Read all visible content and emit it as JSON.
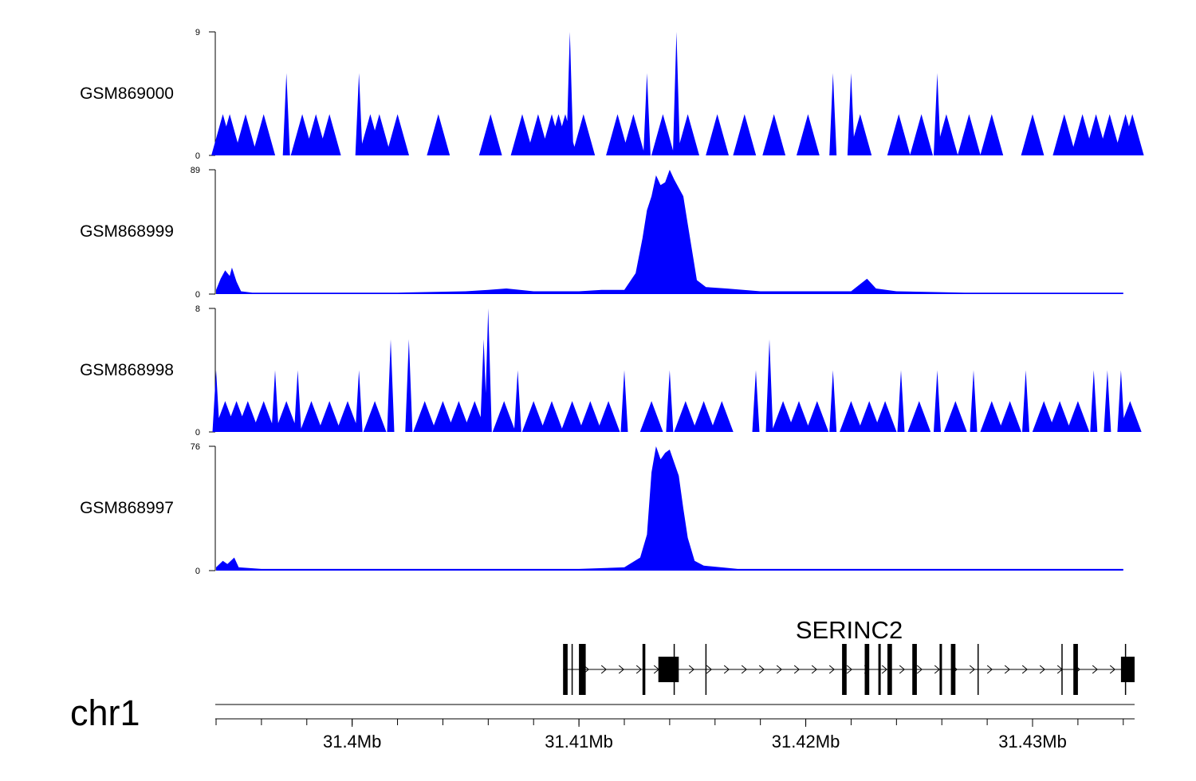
{
  "chart_data": {
    "type": "area",
    "colors": {
      "signal": "#0000ff",
      "gene": "#000000",
      "axis": "#000000"
    },
    "chromosome": "chr1",
    "x_range_mb": [
      31.394,
      31.4345
    ],
    "x_ticks": [
      {
        "value": 31.4,
        "label": "31.4Mb"
      },
      {
        "value": 31.41,
        "label": "31.41Mb"
      },
      {
        "value": 31.42,
        "label": "31.42Mb"
      },
      {
        "value": 31.43,
        "label": "31.43Mb"
      }
    ],
    "tracks": [
      {
        "name": "GSM869000",
        "ymin": 0,
        "ymax": 9,
        "ymin_label": "0",
        "ymax_label": "9",
        "series": [
          {
            "x": 31.3943,
            "y": 3
          },
          {
            "x": 31.3946,
            "y": 3
          },
          {
            "x": 31.3953,
            "y": 3
          },
          {
            "x": 31.3961,
            "y": 3
          },
          {
            "x": 31.3971,
            "y": 6
          },
          {
            "x": 31.3978,
            "y": 3
          },
          {
            "x": 31.3984,
            "y": 3
          },
          {
            "x": 31.399,
            "y": 3
          },
          {
            "x": 31.4003,
            "y": 6
          },
          {
            "x": 31.4008,
            "y": 3
          },
          {
            "x": 31.4012,
            "y": 3
          },
          {
            "x": 31.402,
            "y": 3
          },
          {
            "x": 31.4038,
            "y": 3
          },
          {
            "x": 31.4061,
            "y": 3
          },
          {
            "x": 31.4075,
            "y": 3
          },
          {
            "x": 31.4082,
            "y": 3
          },
          {
            "x": 31.4088,
            "y": 3
          },
          {
            "x": 31.4091,
            "y": 3
          },
          {
            "x": 31.4094,
            "y": 3
          },
          {
            "x": 31.4096,
            "y": 9
          },
          {
            "x": 31.4102,
            "y": 3
          },
          {
            "x": 31.4117,
            "y": 3
          },
          {
            "x": 31.4124,
            "y": 3
          },
          {
            "x": 31.413,
            "y": 6
          },
          {
            "x": 31.4137,
            "y": 3
          },
          {
            "x": 31.4143,
            "y": 9
          },
          {
            "x": 31.4148,
            "y": 3
          },
          {
            "x": 31.4161,
            "y": 3
          },
          {
            "x": 31.4173,
            "y": 3
          },
          {
            "x": 31.4186,
            "y": 3
          },
          {
            "x": 31.4201,
            "y": 3
          },
          {
            "x": 31.4212,
            "y": 6
          },
          {
            "x": 31.422,
            "y": 6
          },
          {
            "x": 31.4224,
            "y": 3
          },
          {
            "x": 31.4241,
            "y": 3
          },
          {
            "x": 31.4251,
            "y": 3
          },
          {
            "x": 31.4258,
            "y": 6
          },
          {
            "x": 31.4262,
            "y": 3
          },
          {
            "x": 31.4272,
            "y": 3
          },
          {
            "x": 31.4282,
            "y": 3
          },
          {
            "x": 31.43,
            "y": 3
          },
          {
            "x": 31.4314,
            "y": 3
          },
          {
            "x": 31.4322,
            "y": 3
          },
          {
            "x": 31.4328,
            "y": 3
          },
          {
            "x": 31.4334,
            "y": 3
          },
          {
            "x": 31.4341,
            "y": 3
          },
          {
            "x": 31.4344,
            "y": 3
          }
        ]
      },
      {
        "name": "GSM868999",
        "ymin": 0,
        "ymax": 89,
        "ymin_label": "0",
        "ymax_label": "89",
        "series": [
          {
            "x": 31.394,
            "y": 3
          },
          {
            "x": 31.3942,
            "y": 11
          },
          {
            "x": 31.3944,
            "y": 17
          },
          {
            "x": 31.3946,
            "y": 13
          },
          {
            "x": 31.3947,
            "y": 19
          },
          {
            "x": 31.3949,
            "y": 9
          },
          {
            "x": 31.3951,
            "y": 2
          },
          {
            "x": 31.3956,
            "y": 1
          },
          {
            "x": 31.3962,
            "y": 1
          },
          {
            "x": 31.397,
            "y": 1
          },
          {
            "x": 31.398,
            "y": 1
          },
          {
            "x": 31.399,
            "y": 1
          },
          {
            "x": 31.4,
            "y": 1
          },
          {
            "x": 31.402,
            "y": 1
          },
          {
            "x": 31.405,
            "y": 2
          },
          {
            "x": 31.406,
            "y": 3
          },
          {
            "x": 31.4068,
            "y": 4
          },
          {
            "x": 31.408,
            "y": 2
          },
          {
            "x": 31.41,
            "y": 2
          },
          {
            "x": 31.411,
            "y": 3
          },
          {
            "x": 31.412,
            "y": 3
          },
          {
            "x": 31.4125,
            "y": 15
          },
          {
            "x": 31.4128,
            "y": 40
          },
          {
            "x": 31.413,
            "y": 60
          },
          {
            "x": 31.4132,
            "y": 70
          },
          {
            "x": 31.4134,
            "y": 85
          },
          {
            "x": 31.4136,
            "y": 78
          },
          {
            "x": 31.4138,
            "y": 80
          },
          {
            "x": 31.414,
            "y": 89
          },
          {
            "x": 31.4142,
            "y": 82
          },
          {
            "x": 31.4144,
            "y": 76
          },
          {
            "x": 31.4146,
            "y": 70
          },
          {
            "x": 31.4148,
            "y": 50
          },
          {
            "x": 31.415,
            "y": 30
          },
          {
            "x": 31.4152,
            "y": 10
          },
          {
            "x": 31.4156,
            "y": 5
          },
          {
            "x": 31.4165,
            "y": 4
          },
          {
            "x": 31.418,
            "y": 2
          },
          {
            "x": 31.42,
            "y": 2
          },
          {
            "x": 31.422,
            "y": 2
          },
          {
            "x": 31.4227,
            "y": 11
          },
          {
            "x": 31.4231,
            "y": 4
          },
          {
            "x": 31.424,
            "y": 2
          },
          {
            "x": 31.427,
            "y": 1
          },
          {
            "x": 31.43,
            "y": 1
          },
          {
            "x": 31.433,
            "y": 1
          },
          {
            "x": 31.434,
            "y": 1
          }
        ]
      },
      {
        "name": "GSM868998",
        "ymin": 0,
        "ymax": 8,
        "ymin_label": "0",
        "ymax_label": "8",
        "series": [
          {
            "x": 31.394,
            "y": 4
          },
          {
            "x": 31.3944,
            "y": 2
          },
          {
            "x": 31.3949,
            "y": 2
          },
          {
            "x": 31.3954,
            "y": 2
          },
          {
            "x": 31.3961,
            "y": 2
          },
          {
            "x": 31.3966,
            "y": 4
          },
          {
            "x": 31.3971,
            "y": 2
          },
          {
            "x": 31.3976,
            "y": 4
          },
          {
            "x": 31.3982,
            "y": 2
          },
          {
            "x": 31.399,
            "y": 2
          },
          {
            "x": 31.3998,
            "y": 2
          },
          {
            "x": 31.4003,
            "y": 4
          },
          {
            "x": 31.401,
            "y": 2
          },
          {
            "x": 31.4017,
            "y": 6
          },
          {
            "x": 31.4025,
            "y": 6
          },
          {
            "x": 31.4032,
            "y": 2
          },
          {
            "x": 31.404,
            "y": 2
          },
          {
            "x": 31.4047,
            "y": 2
          },
          {
            "x": 31.4054,
            "y": 2
          },
          {
            "x": 31.4058,
            "y": 6
          },
          {
            "x": 31.406,
            "y": 8
          },
          {
            "x": 31.4067,
            "y": 2
          },
          {
            "x": 31.4073,
            "y": 4
          },
          {
            "x": 31.408,
            "y": 2
          },
          {
            "x": 31.4088,
            "y": 2
          },
          {
            "x": 31.4097,
            "y": 2
          },
          {
            "x": 31.4105,
            "y": 2
          },
          {
            "x": 31.4113,
            "y": 2
          },
          {
            "x": 31.412,
            "y": 4
          },
          {
            "x": 31.4132,
            "y": 2
          },
          {
            "x": 31.414,
            "y": 4
          },
          {
            "x": 31.4147,
            "y": 2
          },
          {
            "x": 31.4155,
            "y": 2
          },
          {
            "x": 31.4163,
            "y": 2
          },
          {
            "x": 31.4178,
            "y": 4
          },
          {
            "x": 31.4184,
            "y": 6
          },
          {
            "x": 31.419,
            "y": 2
          },
          {
            "x": 31.4197,
            "y": 2
          },
          {
            "x": 31.4205,
            "y": 2
          },
          {
            "x": 31.4212,
            "y": 4
          },
          {
            "x": 31.422,
            "y": 2
          },
          {
            "x": 31.4228,
            "y": 2
          },
          {
            "x": 31.4235,
            "y": 2
          },
          {
            "x": 31.4242,
            "y": 4
          },
          {
            "x": 31.425,
            "y": 2
          },
          {
            "x": 31.4258,
            "y": 4
          },
          {
            "x": 31.4266,
            "y": 2
          },
          {
            "x": 31.4274,
            "y": 4
          },
          {
            "x": 31.4282,
            "y": 2
          },
          {
            "x": 31.429,
            "y": 2
          },
          {
            "x": 31.4297,
            "y": 4
          },
          {
            "x": 31.4305,
            "y": 2
          },
          {
            "x": 31.4312,
            "y": 2
          },
          {
            "x": 31.432,
            "y": 2
          },
          {
            "x": 31.4327,
            "y": 4
          },
          {
            "x": 31.4333,
            "y": 4
          },
          {
            "x": 31.4339,
            "y": 4
          },
          {
            "x": 31.4343,
            "y": 2
          }
        ]
      },
      {
        "name": "GSM868997",
        "ymin": 0,
        "ymax": 76,
        "ymin_label": "0",
        "ymax_label": "76",
        "series": [
          {
            "x": 31.394,
            "y": 2
          },
          {
            "x": 31.3943,
            "y": 6
          },
          {
            "x": 31.3945,
            "y": 4
          },
          {
            "x": 31.3948,
            "y": 8
          },
          {
            "x": 31.395,
            "y": 2
          },
          {
            "x": 31.396,
            "y": 1
          },
          {
            "x": 31.398,
            "y": 1
          },
          {
            "x": 31.4,
            "y": 1
          },
          {
            "x": 31.402,
            "y": 1
          },
          {
            "x": 31.404,
            "y": 1
          },
          {
            "x": 31.406,
            "y": 1
          },
          {
            "x": 31.408,
            "y": 1
          },
          {
            "x": 31.41,
            "y": 1
          },
          {
            "x": 31.412,
            "y": 2
          },
          {
            "x": 31.4127,
            "y": 8
          },
          {
            "x": 31.413,
            "y": 22
          },
          {
            "x": 31.4132,
            "y": 60
          },
          {
            "x": 31.4134,
            "y": 76
          },
          {
            "x": 31.4136,
            "y": 68
          },
          {
            "x": 31.4138,
            "y": 72
          },
          {
            "x": 31.414,
            "y": 74
          },
          {
            "x": 31.4142,
            "y": 66
          },
          {
            "x": 31.4144,
            "y": 58
          },
          {
            "x": 31.4146,
            "y": 38
          },
          {
            "x": 31.4148,
            "y": 20
          },
          {
            "x": 31.4151,
            "y": 6
          },
          {
            "x": 31.4155,
            "y": 3
          },
          {
            "x": 31.417,
            "y": 1
          },
          {
            "x": 31.42,
            "y": 1
          },
          {
            "x": 31.424,
            "y": 1
          },
          {
            "x": 31.428,
            "y": 1
          },
          {
            "x": 31.432,
            "y": 1
          },
          {
            "x": 31.434,
            "y": 1
          }
        ]
      }
    ],
    "gene": {
      "name": "SERINC2",
      "strand": "+",
      "start": 31.4093,
      "end": 31.4345,
      "exons": [
        {
          "start": 31.4093,
          "end": 31.4095
        },
        {
          "start": 31.41,
          "end": 31.4103
        },
        {
          "start": 31.4128,
          "end": 31.4129
        },
        {
          "start": 31.4135,
          "end": 31.4144
        },
        {
          "start": 31.4216,
          "end": 31.4218
        },
        {
          "start": 31.4226,
          "end": 31.4228
        },
        {
          "start": 31.4232,
          "end": 31.4233
        },
        {
          "start": 31.4236,
          "end": 31.4238
        },
        {
          "start": 31.4247,
          "end": 31.4249
        },
        {
          "start": 31.4259,
          "end": 31.426
        },
        {
          "start": 31.4264,
          "end": 31.4266
        },
        {
          "start": 31.4318,
          "end": 31.432
        },
        {
          "start": 31.4339,
          "end": 31.4345
        }
      ],
      "tall_marks": [
        31.4097,
        31.4102,
        31.4129,
        31.4142,
        31.4156,
        31.4276,
        31.4313,
        31.4341
      ]
    }
  }
}
